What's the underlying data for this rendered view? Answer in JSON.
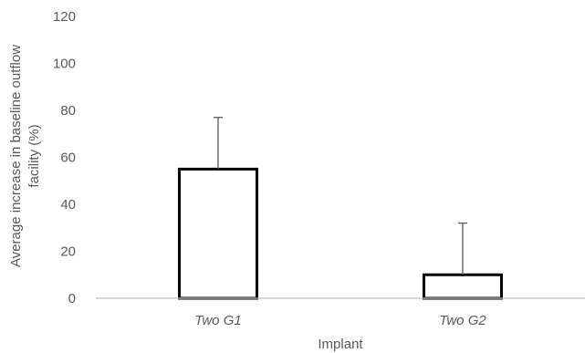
{
  "chart_data": {
    "type": "bar",
    "categories": [
      "Two G1",
      "Two G2"
    ],
    "values": [
      55,
      10
    ],
    "error_plus": [
      22,
      22
    ],
    "xlabel": "Implant",
    "ylabel_lines": [
      "Average increase in baseline outflow",
      "facility (%)"
    ],
    "ylim": [
      0,
      120
    ],
    "yticks": [
      "0",
      "20",
      "40",
      "60",
      "80",
      "100",
      "120"
    ],
    "grid": false,
    "legend": "none",
    "colors": {
      "bar_fill": "#ffffff",
      "bar_stroke": "#000000",
      "axis": "#bfbfbf",
      "error": "#595959",
      "text": "#595959"
    }
  }
}
